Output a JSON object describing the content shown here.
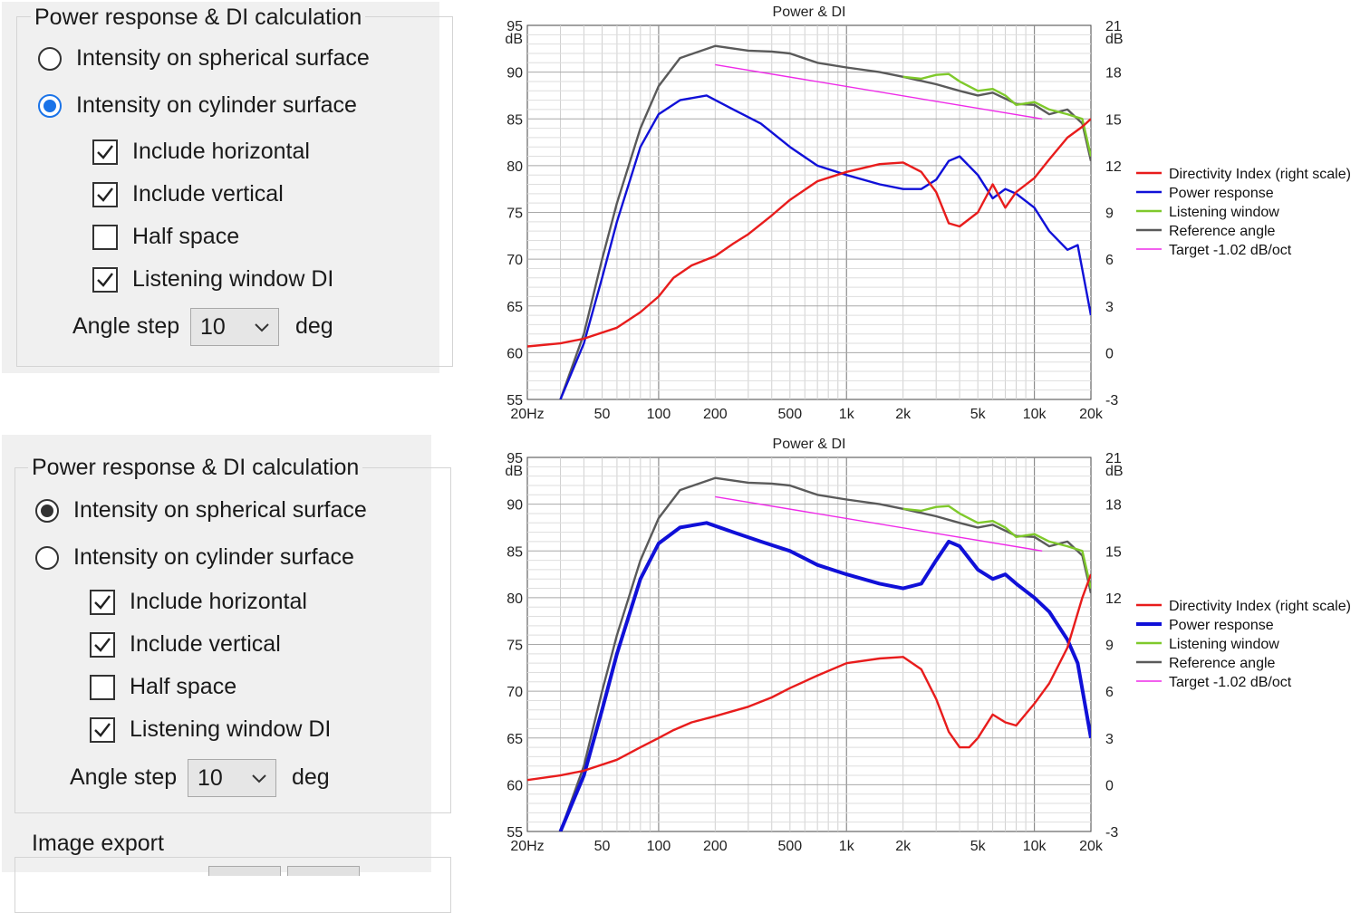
{
  "panel_top": {
    "group_title": "Power response & DI calculation",
    "radio_spherical": "Intensity on spherical surface",
    "radio_cylinder": "Intensity on cylinder surface",
    "radio_selected": "cylinder",
    "radio_accent": "#1a73e8",
    "checks": [
      {
        "label": "Include horizontal",
        "checked": true
      },
      {
        "label": "Include vertical",
        "checked": true
      },
      {
        "label": "Half space",
        "checked": false
      },
      {
        "label": "Listening window DI",
        "checked": true
      }
    ],
    "angle_label": "Angle step",
    "angle_value": "10",
    "angle_unit": "deg"
  },
  "panel_bottom": {
    "group_title": "Power response & DI calculation",
    "radio_spherical": "Intensity on spherical surface",
    "radio_cylinder": "Intensity on cylinder surface",
    "radio_selected": "spherical",
    "radio_accent": "#333333",
    "checks": [
      {
        "label": "Include horizontal",
        "checked": true
      },
      {
        "label": "Include vertical",
        "checked": true
      },
      {
        "label": "Half space",
        "checked": false
      },
      {
        "label": "Listening window DI",
        "checked": true
      }
    ],
    "angle_label": "Angle step",
    "angle_value": "10",
    "angle_unit": "deg",
    "export_title": "Image export"
  },
  "chart_data": [
    {
      "type": "line",
      "title": "Power & DI",
      "x_scale": "log",
      "xlim": [
        20,
        20000
      ],
      "x_ticks": [
        20,
        50,
        100,
        200,
        500,
        1000,
        2000,
        5000,
        10000,
        20000
      ],
      "x_tick_labels": [
        "20Hz",
        "50",
        "100",
        "200",
        "500",
        "1k",
        "2k",
        "5k",
        "10k",
        "20k"
      ],
      "ylim": [
        55,
        95
      ],
      "y_ticks": [
        95,
        90,
        85,
        80,
        75,
        70,
        65,
        60,
        55
      ],
      "y_unit": "dB",
      "y2lim": [
        -3,
        21
      ],
      "y2_ticks": [
        21,
        18,
        15,
        12,
        9,
        6,
        3,
        0,
        -3
      ],
      "y2_unit": "dB",
      "grid": true,
      "legend_position": "right",
      "series": [
        {
          "name": "Directivity Index (right scale)",
          "color": "#e81c1c",
          "axis": "right",
          "x": [
            20,
            30,
            40,
            60,
            80,
            100,
            120,
            150,
            200,
            250,
            300,
            400,
            500,
            700,
            1000,
            1500,
            2000,
            2500,
            3000,
            3500,
            4000,
            5000,
            6000,
            7000,
            8000,
            10000,
            12000,
            15000,
            18000,
            20000
          ],
          "y": [
            0.4,
            0.6,
            0.9,
            1.6,
            2.6,
            3.6,
            4.8,
            5.6,
            6.2,
            7.0,
            7.6,
            8.8,
            9.8,
            11.0,
            11.6,
            12.1,
            12.2,
            11.6,
            10.3,
            8.3,
            8.1,
            9.0,
            10.8,
            9.3,
            10.3,
            11.2,
            12.4,
            13.8,
            14.5,
            15.0
          ]
        },
        {
          "name": "Power response",
          "color": "#1010d8",
          "axis": "left",
          "x": [
            30,
            40,
            50,
            60,
            80,
            100,
            130,
            180,
            250,
            350,
            500,
            700,
            1000,
            1500,
            2000,
            2500,
            3000,
            3500,
            4000,
            5000,
            6000,
            7000,
            8000,
            10000,
            12000,
            15000,
            17000,
            20000
          ],
          "y": [
            55,
            61,
            68,
            74,
            82,
            85.5,
            87.0,
            87.5,
            86.0,
            84.5,
            82.0,
            80.0,
            79.0,
            78.0,
            77.5,
            77.5,
            78.5,
            80.5,
            81.0,
            79.0,
            76.5,
            77.5,
            77.0,
            75.5,
            73.0,
            71.0,
            71.5,
            64.0
          ]
        },
        {
          "name": "Listening window",
          "color": "#7fc92b",
          "axis": "left",
          "x": [
            2000,
            2500,
            3000,
            3500,
            4000,
            5000,
            6000,
            7000,
            8000,
            10000,
            12000,
            15000,
            18000,
            20000
          ],
          "y": [
            89.5,
            89.3,
            89.7,
            89.8,
            89.0,
            88.0,
            88.2,
            87.5,
            86.5,
            86.8,
            86.0,
            85.5,
            85.0,
            81.0
          ]
        },
        {
          "name": "Reference angle",
          "color": "#5a5a5a",
          "axis": "left",
          "x": [
            30,
            40,
            50,
            60,
            80,
            100,
            130,
            200,
            300,
            400,
            500,
            700,
            1000,
            1500,
            2000,
            3000,
            4000,
            5000,
            6000,
            8000,
            10000,
            12000,
            15000,
            18000,
            20000
          ],
          "y": [
            55,
            62,
            70,
            76,
            84,
            88.5,
            91.5,
            92.8,
            92.3,
            92.2,
            92.0,
            91.0,
            90.5,
            90.0,
            89.5,
            88.7,
            88.0,
            87.5,
            87.8,
            86.6,
            86.5,
            85.5,
            86.0,
            84.5,
            80.5
          ]
        },
        {
          "name": "Target -1.02 dB/oct",
          "color": "#ee2be8",
          "axis": "left",
          "x": [
            200,
            11000
          ],
          "y": [
            90.8,
            85.0
          ]
        }
      ]
    },
    {
      "type": "line",
      "title": "Power & DI",
      "x_scale": "log",
      "xlim": [
        20,
        20000
      ],
      "x_ticks": [
        20,
        50,
        100,
        200,
        500,
        1000,
        2000,
        5000,
        10000,
        20000
      ],
      "x_tick_labels": [
        "20Hz",
        "50",
        "100",
        "200",
        "500",
        "1k",
        "2k",
        "5k",
        "10k",
        "20k"
      ],
      "ylim": [
        55,
        95
      ],
      "y_ticks": [
        95,
        90,
        85,
        80,
        75,
        70,
        65,
        60,
        55
      ],
      "y_unit": "dB",
      "y2lim": [
        -3,
        21
      ],
      "y2_ticks": [
        21,
        18,
        15,
        12,
        9,
        6,
        3,
        0,
        -3
      ],
      "y2_unit": "dB",
      "grid": true,
      "legend_position": "right",
      "series": [
        {
          "name": "Directivity Index (right scale)",
          "color": "#e81c1c",
          "axis": "right",
          "x": [
            20,
            30,
            40,
            60,
            80,
            100,
            120,
            150,
            200,
            300,
            400,
            500,
            700,
            1000,
            1500,
            2000,
            2500,
            3000,
            3500,
            4000,
            4500,
            5000,
            6000,
            7000,
            8000,
            10000,
            12000,
            15000,
            18000,
            20000
          ],
          "y": [
            0.3,
            0.6,
            0.9,
            1.6,
            2.4,
            3.0,
            3.5,
            4.0,
            4.4,
            5.0,
            5.6,
            6.2,
            7.0,
            7.8,
            8.1,
            8.2,
            7.4,
            5.5,
            3.4,
            2.4,
            2.4,
            3.0,
            4.5,
            4.0,
            3.8,
            5.2,
            6.5,
            8.8,
            12.0,
            13.5
          ]
        },
        {
          "name": "Power response",
          "color": "#1010d8",
          "axis": "left",
          "x": [
            30,
            40,
            50,
            60,
            80,
            100,
            130,
            180,
            250,
            350,
            500,
            700,
            1000,
            1500,
            2000,
            2500,
            3000,
            3500,
            4000,
            5000,
            6000,
            7000,
            8000,
            10000,
            12000,
            15000,
            17000,
            20000
          ],
          "y": [
            55,
            61,
            68,
            74,
            82,
            85.8,
            87.5,
            88.0,
            87.0,
            86.0,
            85.0,
            83.5,
            82.5,
            81.5,
            81.0,
            81.5,
            84.0,
            86.0,
            85.5,
            83.0,
            82.0,
            82.5,
            81.5,
            80.0,
            78.5,
            75.5,
            73.0,
            65.0
          ]
        },
        {
          "name": "Listening window",
          "color": "#7fc92b",
          "axis": "left",
          "x": [
            2000,
            2500,
            3000,
            3500,
            4000,
            5000,
            6000,
            7000,
            8000,
            10000,
            12000,
            15000,
            18000,
            20000
          ],
          "y": [
            89.5,
            89.3,
            89.7,
            89.8,
            89.0,
            88.0,
            88.2,
            87.5,
            86.5,
            86.8,
            86.0,
            85.5,
            85.0,
            81.0
          ]
        },
        {
          "name": "Reference angle",
          "color": "#5a5a5a",
          "axis": "left",
          "x": [
            30,
            40,
            50,
            60,
            80,
            100,
            130,
            200,
            300,
            400,
            500,
            700,
            1000,
            1500,
            2000,
            3000,
            4000,
            5000,
            6000,
            8000,
            10000,
            12000,
            15000,
            18000,
            20000
          ],
          "y": [
            55,
            62,
            70,
            76,
            84,
            88.5,
            91.5,
            92.8,
            92.3,
            92.2,
            92.0,
            91.0,
            90.5,
            90.0,
            89.5,
            88.7,
            88.0,
            87.5,
            87.8,
            86.6,
            86.5,
            85.5,
            86.0,
            84.5,
            80.5
          ]
        },
        {
          "name": "Target -1.02 dB/oct",
          "color": "#ee2be8",
          "axis": "left",
          "x": [
            200,
            11000
          ],
          "y": [
            90.8,
            85.0
          ]
        }
      ]
    }
  ]
}
